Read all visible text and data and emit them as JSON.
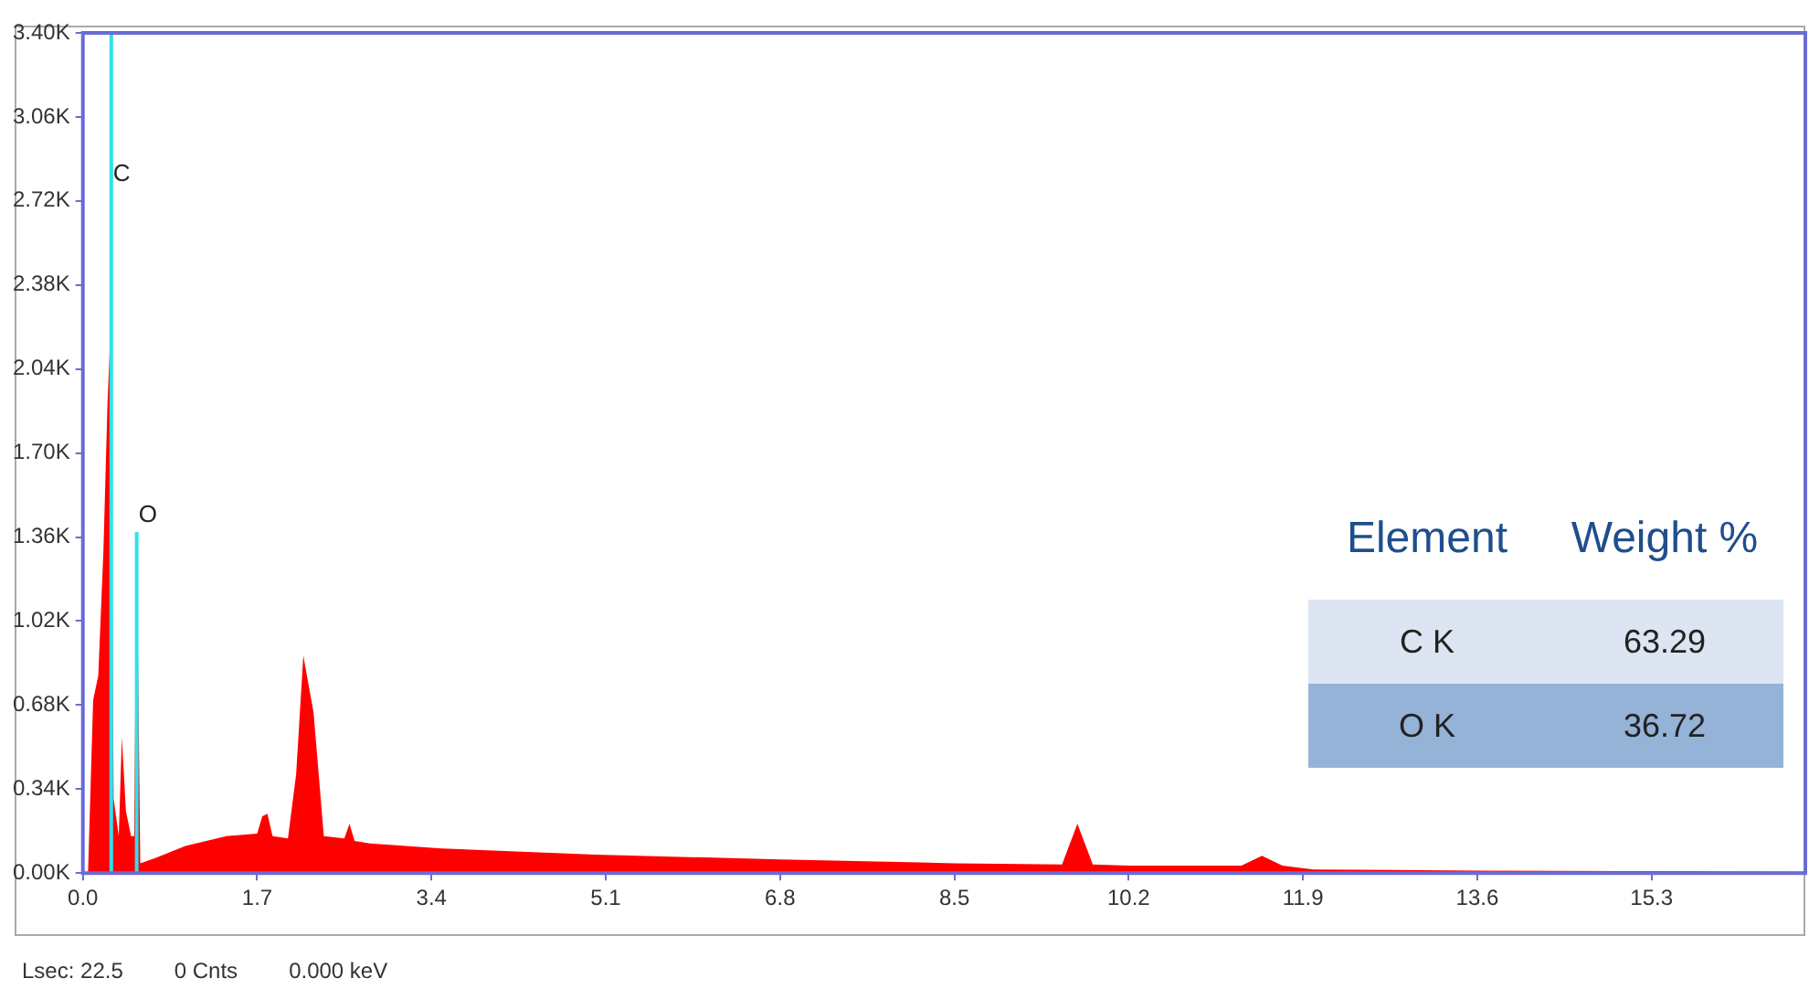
{
  "chart_data": {
    "type": "area",
    "xlim": [
      0,
      16.8
    ],
    "xticks": [
      {
        "value": 0,
        "label": "0.0"
      },
      1.7,
      3.4,
      5.1,
      6.8,
      8.5,
      10.2,
      11.9,
      13.6,
      15.3
    ],
    "ylim": [
      0,
      3400
    ],
    "yticks": [
      {
        "value": 0,
        "label": "0.00K"
      },
      {
        "value": 340,
        "label": "0.34K"
      },
      {
        "value": 680,
        "label": "0.68K"
      },
      {
        "value": 1020,
        "label": "1.02K"
      },
      {
        "value": 1360,
        "label": "1.36K"
      },
      {
        "value": 1700,
        "label": "1.70K"
      },
      {
        "value": 2040,
        "label": "2.04K"
      },
      {
        "value": 2380,
        "label": "2.38K"
      },
      {
        "value": 2720,
        "label": "2.72K"
      },
      {
        "value": 3060,
        "label": "3.06K"
      },
      {
        "value": 3400,
        "label": "3.40K"
      }
    ],
    "grid": false,
    "legend": false,
    "series": [
      {
        "color": "#ff0000",
        "x": [
          0,
          0.05,
          0.1,
          0.15,
          0.2,
          0.24,
          0.27,
          0.3,
          0.35,
          0.38,
          0.42,
          0.47,
          0.5,
          0.525,
          0.56,
          0.7,
          1.0,
          1.4,
          1.7,
          1.75,
          1.8,
          1.85,
          2.0,
          2.08,
          2.15,
          2.25,
          2.35,
          2.55,
          2.6,
          2.65,
          2.8,
          3.5,
          5.0,
          6.8,
          8.5,
          9.55,
          9.7,
          9.85,
          10.2,
          11.3,
          11.5,
          11.7,
          12.0,
          13.6,
          15.3,
          16.8
        ],
        "values": [
          0,
          0,
          700,
          800,
          1300,
          1900,
          2200,
          300,
          150,
          550,
          250,
          150,
          150,
          1350,
          40,
          60,
          110,
          150,
          160,
          230,
          240,
          150,
          140,
          400,
          880,
          650,
          150,
          140,
          200,
          130,
          120,
          100,
          75,
          55,
          40,
          35,
          200,
          35,
          30,
          30,
          70,
          30,
          15,
          10,
          8,
          5
        ]
      },
      {
        "type": "line",
        "color": "#33e0e8",
        "x": [
          0.277,
          0.277
        ],
        "values": [
          0,
          3400
        ]
      },
      {
        "type": "line",
        "color": "#33e0e8",
        "x": [
          0.525,
          0.525
        ],
        "values": [
          0,
          1380
        ]
      }
    ],
    "annotations": [
      {
        "text": "C",
        "x": 0.277,
        "y": 2780
      },
      {
        "text": "O",
        "x": 0.525,
        "y": 1400
      },
      "Element",
      "Weight %",
      "C K",
      "63.29",
      "O K",
      "36.72",
      "Lsec: 22.5",
      "0 Cnts",
      "0.000 keV"
    ]
  }
}
